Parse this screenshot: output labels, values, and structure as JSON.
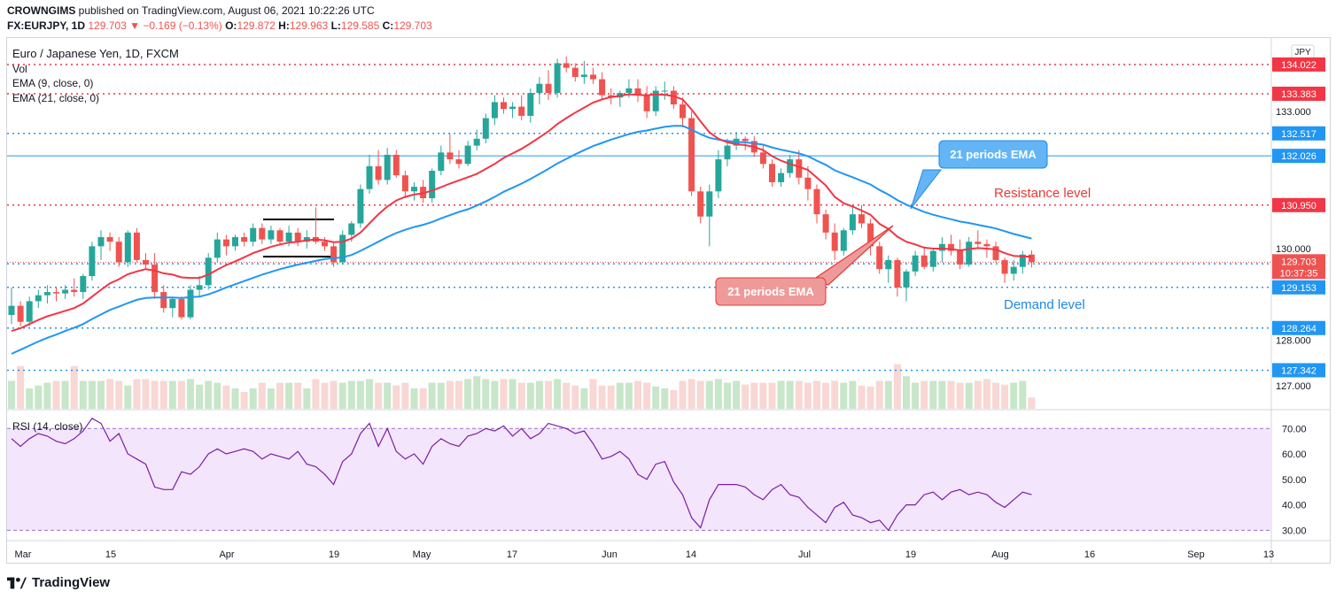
{
  "header": {
    "line1_user": "CROWNGIMS",
    "line1_rest": "published on TradingView.com, August 06, 2021 10:22:26 UTC",
    "symbol": "FX:EURJPY, 1D",
    "last": "129.703",
    "arrow": "▼",
    "change": "−0.169 (−0.13%)",
    "o_label": "O:",
    "o": "129.872",
    "h_label": "H:",
    "h": "129.963",
    "l_label": "L:",
    "l": "129.585",
    "c_label": "C:",
    "c": "129.703"
  },
  "legend": {
    "title": "Euro / Japanese Yen, 1D, FXCM",
    "vol": "Vol",
    "ema9": "EMA (9, close, 0)",
    "ema21": "EMA (21, close, 0)",
    "rsi": "RSI (14, close)",
    "currency": "JPY"
  },
  "annotations": {
    "ema21_blue": "21 periods EMA",
    "ema21_red": "21 periods EMA",
    "resistance": "Resistance level",
    "demand": "Demand level"
  },
  "price_axis": {
    "ticks": [
      "133.000",
      "130.000",
      "128.000",
      "127.000"
    ],
    "levels_red": [
      {
        "v": 134.022,
        "t": "134.022"
      },
      {
        "v": 133.383,
        "t": "133.383"
      },
      {
        "v": 130.95,
        "t": "130.950"
      }
    ],
    "levels_blue": [
      {
        "v": 132.517,
        "t": "132.517"
      },
      {
        "v": 132.026,
        "t": "132.026"
      },
      {
        "v": 129.668,
        "t": "129.668"
      },
      {
        "v": 129.153,
        "t": "129.153"
      },
      {
        "v": 128.264,
        "t": "128.264"
      },
      {
        "v": 127.342,
        "t": "127.342"
      }
    ],
    "current": {
      "v": 129.703,
      "t": "129.703",
      "countdown": "10:37:35"
    }
  },
  "rsi_axis": {
    "ticks": [
      "70.00",
      "60.00",
      "50.00",
      "40.00",
      "30.00"
    ]
  },
  "time_axis": {
    "labels": [
      "Mar",
      "15",
      "Apr",
      "19",
      "May",
      "17",
      "Jun",
      "14",
      "Jul",
      "19",
      "Aug",
      "16",
      "Sep",
      "13"
    ]
  },
  "colors": {
    "up": "#26a69a",
    "down": "#ef5350",
    "ema9": "#f23645",
    "ema21": "#2196f3",
    "rsi": "#7b1fa2",
    "level_red": "#f23645",
    "level_blue": "#2196f3"
  },
  "chart_data": {
    "type": "candlestick",
    "title": "Euro / Japanese Yen, 1D, FXCM",
    "candles": [
      [
        128.55,
        129.15,
        128.35,
        128.75
      ],
      [
        128.75,
        128.85,
        128.3,
        128.4
      ],
      [
        128.4,
        128.95,
        128.3,
        128.85
      ],
      [
        128.85,
        129.1,
        128.7,
        128.98
      ],
      [
        128.98,
        129.2,
        128.8,
        129.05
      ],
      [
        129.05,
        129.15,
        128.85,
        129.02
      ],
      [
        129.02,
        129.2,
        128.9,
        129.1
      ],
      [
        129.1,
        129.35,
        128.95,
        129.05
      ],
      [
        129.05,
        129.45,
        128.9,
        129.4
      ],
      [
        129.4,
        130.15,
        129.3,
        130.05
      ],
      [
        130.05,
        130.4,
        129.75,
        130.25
      ],
      [
        130.25,
        130.35,
        129.95,
        130.15
      ],
      [
        130.15,
        130.25,
        129.6,
        129.7
      ],
      [
        129.7,
        130.4,
        129.6,
        130.35
      ],
      [
        130.35,
        130.45,
        129.7,
        129.75
      ],
      [
        129.75,
        129.9,
        129.55,
        129.65
      ],
      [
        129.65,
        129.9,
        128.9,
        129.05
      ],
      [
        129.05,
        129.2,
        128.6,
        128.7
      ],
      [
        128.7,
        128.95,
        128.5,
        128.9
      ],
      [
        128.9,
        128.95,
        128.45,
        128.5
      ],
      [
        128.5,
        129.2,
        128.45,
        129.1
      ],
      [
        129.1,
        129.4,
        128.95,
        129.2
      ],
      [
        129.2,
        129.9,
        129.1,
        129.8
      ],
      [
        129.8,
        130.35,
        129.7,
        130.2
      ],
      [
        130.2,
        130.3,
        129.85,
        130.05
      ],
      [
        130.05,
        130.3,
        129.95,
        130.25
      ],
      [
        130.25,
        130.35,
        130.05,
        130.15
      ],
      [
        130.15,
        130.55,
        130.05,
        130.45
      ],
      [
        130.45,
        130.55,
        130.1,
        130.2
      ],
      [
        130.2,
        130.5,
        130.1,
        130.4
      ],
      [
        130.4,
        130.45,
        130.1,
        130.15
      ],
      [
        130.15,
        130.5,
        130.05,
        130.35
      ],
      [
        130.35,
        130.45,
        130.05,
        130.15
      ],
      [
        130.15,
        130.4,
        130.0,
        130.25
      ],
      [
        130.25,
        130.9,
        130.1,
        130.15
      ],
      [
        130.15,
        130.25,
        129.95,
        130.05
      ],
      [
        130.05,
        130.15,
        129.6,
        129.7
      ],
      [
        129.7,
        130.4,
        129.65,
        130.3
      ],
      [
        130.3,
        130.6,
        130.15,
        130.55
      ],
      [
        130.55,
        131.4,
        130.45,
        131.3
      ],
      [
        131.3,
        132.05,
        131.2,
        131.8
      ],
      [
        131.8,
        132.15,
        131.4,
        131.5
      ],
      [
        131.5,
        132.2,
        131.4,
        132.05
      ],
      [
        132.05,
        132.15,
        131.55,
        131.6
      ],
      [
        131.6,
        131.7,
        131.1,
        131.25
      ],
      [
        131.25,
        131.45,
        131.05,
        131.35
      ],
      [
        131.35,
        131.5,
        131.0,
        131.1
      ],
      [
        131.1,
        131.75,
        131.0,
        131.7
      ],
      [
        131.7,
        132.25,
        131.6,
        132.1
      ],
      [
        132.1,
        132.5,
        131.85,
        131.95
      ],
      [
        131.95,
        132.15,
        131.75,
        131.85
      ],
      [
        131.85,
        132.35,
        131.8,
        132.25
      ],
      [
        132.25,
        132.6,
        132.15,
        132.4
      ],
      [
        132.4,
        132.95,
        132.3,
        132.85
      ],
      [
        132.85,
        133.35,
        132.7,
        133.2
      ],
      [
        133.2,
        133.3,
        132.95,
        133.05
      ],
      [
        133.05,
        133.2,
        132.85,
        133.1
      ],
      [
        133.1,
        133.35,
        132.8,
        132.9
      ],
      [
        132.9,
        133.5,
        132.75,
        133.4
      ],
      [
        133.4,
        133.75,
        133.15,
        133.6
      ],
      [
        133.6,
        133.9,
        133.25,
        133.4
      ],
      [
        133.4,
        134.15,
        133.3,
        134.05
      ],
      [
        134.05,
        134.2,
        133.85,
        133.95
      ],
      [
        133.95,
        134.05,
        133.65,
        133.75
      ],
      [
        133.75,
        134.1,
        133.6,
        133.8
      ],
      [
        133.8,
        133.95,
        133.6,
        133.7
      ],
      [
        133.7,
        133.85,
        133.25,
        133.35
      ],
      [
        133.35,
        133.5,
        133.15,
        133.3
      ],
      [
        133.3,
        133.45,
        133.1,
        133.4
      ],
      [
        133.4,
        133.7,
        133.3,
        133.5
      ],
      [
        133.5,
        133.7,
        133.2,
        133.35
      ],
      [
        133.35,
        133.55,
        132.85,
        133.0
      ],
      [
        133.0,
        133.55,
        132.9,
        133.45
      ],
      [
        133.45,
        133.65,
        133.25,
        133.45
      ],
      [
        133.45,
        133.55,
        133.05,
        133.15
      ],
      [
        133.15,
        133.3,
        132.65,
        132.85
      ],
      [
        132.85,
        133.0,
        131.15,
        131.25
      ],
      [
        131.25,
        131.35,
        130.55,
        130.7
      ],
      [
        130.7,
        131.4,
        130.05,
        131.25
      ],
      [
        131.25,
        132.15,
        131.1,
        131.95
      ],
      [
        131.95,
        132.4,
        131.8,
        132.25
      ],
      [
        132.25,
        132.55,
        132.15,
        132.4
      ],
      [
        132.4,
        132.45,
        132.15,
        132.35
      ],
      [
        132.35,
        132.45,
        132.0,
        132.1
      ],
      [
        132.1,
        132.25,
        131.75,
        131.85
      ],
      [
        131.85,
        131.95,
        131.35,
        131.45
      ],
      [
        131.45,
        131.75,
        131.35,
        131.65
      ],
      [
        131.65,
        132.05,
        131.55,
        131.95
      ],
      [
        131.95,
        132.15,
        131.4,
        131.55
      ],
      [
        131.55,
        131.8,
        131.05,
        131.3
      ],
      [
        131.3,
        131.4,
        130.55,
        130.75
      ],
      [
        130.75,
        130.85,
        130.2,
        130.35
      ],
      [
        130.35,
        130.55,
        129.75,
        129.95
      ],
      [
        129.95,
        130.45,
        129.85,
        130.4
      ],
      [
        130.4,
        130.9,
        130.3,
        130.75
      ],
      [
        130.75,
        130.95,
        130.45,
        130.55
      ],
      [
        130.55,
        130.65,
        129.85,
        130.05
      ],
      [
        130.05,
        130.15,
        129.45,
        129.55
      ],
      [
        129.55,
        129.85,
        129.25,
        129.75
      ],
      [
        129.75,
        129.8,
        128.95,
        129.15
      ],
      [
        129.15,
        129.55,
        128.85,
        129.5
      ],
      [
        129.5,
        129.95,
        129.4,
        129.85
      ],
      [
        129.85,
        130.05,
        129.55,
        129.6
      ],
      [
        129.6,
        130.0,
        129.5,
        129.95
      ],
      [
        129.95,
        130.25,
        129.7,
        130.1
      ],
      [
        130.1,
        130.3,
        129.85,
        129.95
      ],
      [
        129.95,
        130.2,
        129.55,
        129.65
      ],
      [
        129.65,
        130.25,
        129.6,
        130.15
      ],
      [
        130.15,
        130.4,
        130.0,
        130.1
      ],
      [
        130.1,
        130.2,
        129.8,
        130.05
      ],
      [
        130.05,
        130.15,
        129.7,
        129.75
      ],
      [
        129.75,
        129.8,
        129.25,
        129.45
      ],
      [
        129.45,
        129.75,
        129.3,
        129.6
      ],
      [
        129.6,
        129.95,
        129.45,
        129.87
      ],
      [
        129.87,
        129.963,
        129.585,
        129.703
      ]
    ],
    "ema9": [
      128.2,
      128.26,
      128.35,
      128.44,
      128.52,
      128.58,
      128.64,
      128.7,
      128.8,
      128.95,
      129.1,
      129.24,
      129.33,
      129.44,
      129.5,
      129.55,
      129.52,
      129.46,
      129.43,
      129.37,
      129.36,
      129.36,
      129.43,
      129.54,
      129.64,
      129.72,
      129.81,
      129.9,
      129.97,
      130.04,
      130.09,
      130.13,
      130.15,
      130.18,
      130.2,
      130.18,
      130.14,
      130.15,
      130.22,
      130.35,
      130.55,
      130.75,
      130.92,
      131.05,
      131.13,
      131.18,
      131.21,
      131.27,
      131.34,
      131.42,
      131.49,
      131.56,
      131.63,
      131.74,
      131.85,
      131.98,
      132.08,
      132.18,
      132.3,
      132.43,
      132.56,
      132.72,
      132.85,
      132.97,
      133.08,
      133.19,
      133.26,
      133.31,
      133.34,
      133.37,
      133.36,
      133.35,
      133.37,
      133.36,
      133.33,
      133.26,
      133.04,
      132.78,
      132.54,
      132.4,
      132.32,
      132.28,
      132.26,
      132.22,
      132.15,
      132.02,
      131.92,
      131.85,
      131.79,
      131.72,
      131.55,
      131.38,
      131.13,
      130.99,
      130.92,
      130.83,
      130.74,
      130.54,
      130.43,
      130.26,
      130.15,
      130.09,
      130.02,
      130.0,
      130.0,
      129.99,
      129.96,
      129.99,
      130.01,
      130.0,
      129.98,
      129.9,
      129.84,
      129.83,
      129.82
    ],
    "ema21": [
      127.7,
      127.79,
      127.88,
      127.97,
      128.05,
      128.12,
      128.2,
      128.27,
      128.35,
      128.46,
      128.56,
      128.66,
      128.73,
      128.81,
      128.88,
      128.92,
      128.93,
      128.93,
      128.93,
      128.92,
      128.94,
      128.95,
      129.0,
      129.07,
      129.15,
      129.22,
      129.29,
      129.36,
      129.43,
      129.49,
      129.55,
      129.6,
      129.65,
      129.69,
      129.73,
      129.77,
      129.79,
      129.81,
      129.86,
      129.95,
      130.05,
      130.15,
      130.25,
      130.34,
      130.41,
      130.47,
      130.52,
      130.58,
      130.66,
      130.73,
      130.8,
      130.86,
      130.94,
      131.03,
      131.13,
      131.24,
      131.33,
      131.42,
      131.52,
      131.63,
      131.74,
      131.86,
      131.96,
      132.06,
      132.15,
      132.24,
      132.31,
      132.38,
      132.44,
      132.5,
      132.55,
      132.58,
      132.62,
      132.66,
      132.68,
      132.68,
      132.6,
      132.5,
      132.42,
      132.38,
      132.35,
      132.33,
      132.32,
      132.3,
      132.27,
      132.21,
      132.16,
      132.12,
      132.08,
      132.02,
      131.92,
      131.83,
      131.71,
      131.63,
      131.56,
      131.48,
      131.4,
      131.28,
      131.18,
      131.06,
      130.96,
      130.88,
      130.8,
      130.74,
      130.69,
      130.64,
      130.59,
      130.56,
      130.52,
      130.48,
      130.44,
      130.38,
      130.32,
      130.27,
      130.22
    ],
    "volume": [
      30,
      46,
      22,
      25,
      28,
      30,
      30,
      46,
      30,
      30,
      30,
      32,
      30,
      25,
      32,
      32,
      30,
      30,
      30,
      30,
      32,
      26,
      30,
      28,
      25,
      22,
      18,
      22,
      28,
      22,
      28,
      28,
      28,
      22,
      32,
      28,
      30,
      28,
      30,
      30,
      32,
      28,
      28,
      25,
      28,
      22,
      22,
      28,
      28,
      30,
      30,
      32,
      35,
      32,
      30,
      32,
      32,
      28,
      28,
      30,
      30,
      32,
      28,
      25,
      22,
      32,
      25,
      25,
      28,
      28,
      30,
      28,
      24,
      22,
      20,
      30,
      32,
      30,
      30,
      32,
      28,
      30,
      26,
      28,
      28,
      28,
      30,
      30,
      30,
      28,
      30,
      28,
      30,
      28,
      30,
      25,
      24,
      30,
      30,
      48,
      35,
      28,
      30,
      30,
      30,
      30,
      28,
      28,
      30,
      32,
      28,
      26,
      28,
      30,
      12
    ],
    "rsi": [
      66,
      63,
      66,
      68,
      67,
      65,
      64,
      66,
      69,
      74,
      72,
      65,
      68,
      60,
      58,
      56,
      47,
      46,
      46,
      53,
      52,
      55,
      60,
      62,
      60,
      61,
      62,
      61,
      58,
      60,
      59,
      58,
      61,
      56,
      55,
      52,
      48,
      57,
      60,
      68,
      72,
      63,
      70,
      61,
      58,
      60,
      56,
      63,
      66,
      64,
      63,
      67,
      68,
      70,
      69,
      71,
      67,
      70,
      66,
      68,
      72,
      71,
      70,
      68,
      69,
      64,
      58,
      59,
      61,
      58,
      52,
      50,
      56,
      57,
      49,
      44,
      35,
      31,
      42,
      48,
      48,
      48,
      47,
      44,
      42,
      46,
      48,
      44,
      43,
      39,
      36,
      33,
      39,
      41,
      36,
      35,
      33,
      34,
      30,
      36,
      40,
      40,
      44,
      45,
      42,
      45,
      46,
      44,
      45,
      44,
      41,
      39,
      42,
      45,
      44
    ],
    "ylim": [
      126.5,
      134.6
    ],
    "rsi_ylim": [
      27,
      76
    ],
    "x_labels": [
      "Mar",
      "15",
      "Apr",
      "19",
      "May",
      "17",
      "Jun",
      "14",
      "Jul",
      "19",
      "Aug",
      "16",
      "Sep",
      "13"
    ]
  }
}
